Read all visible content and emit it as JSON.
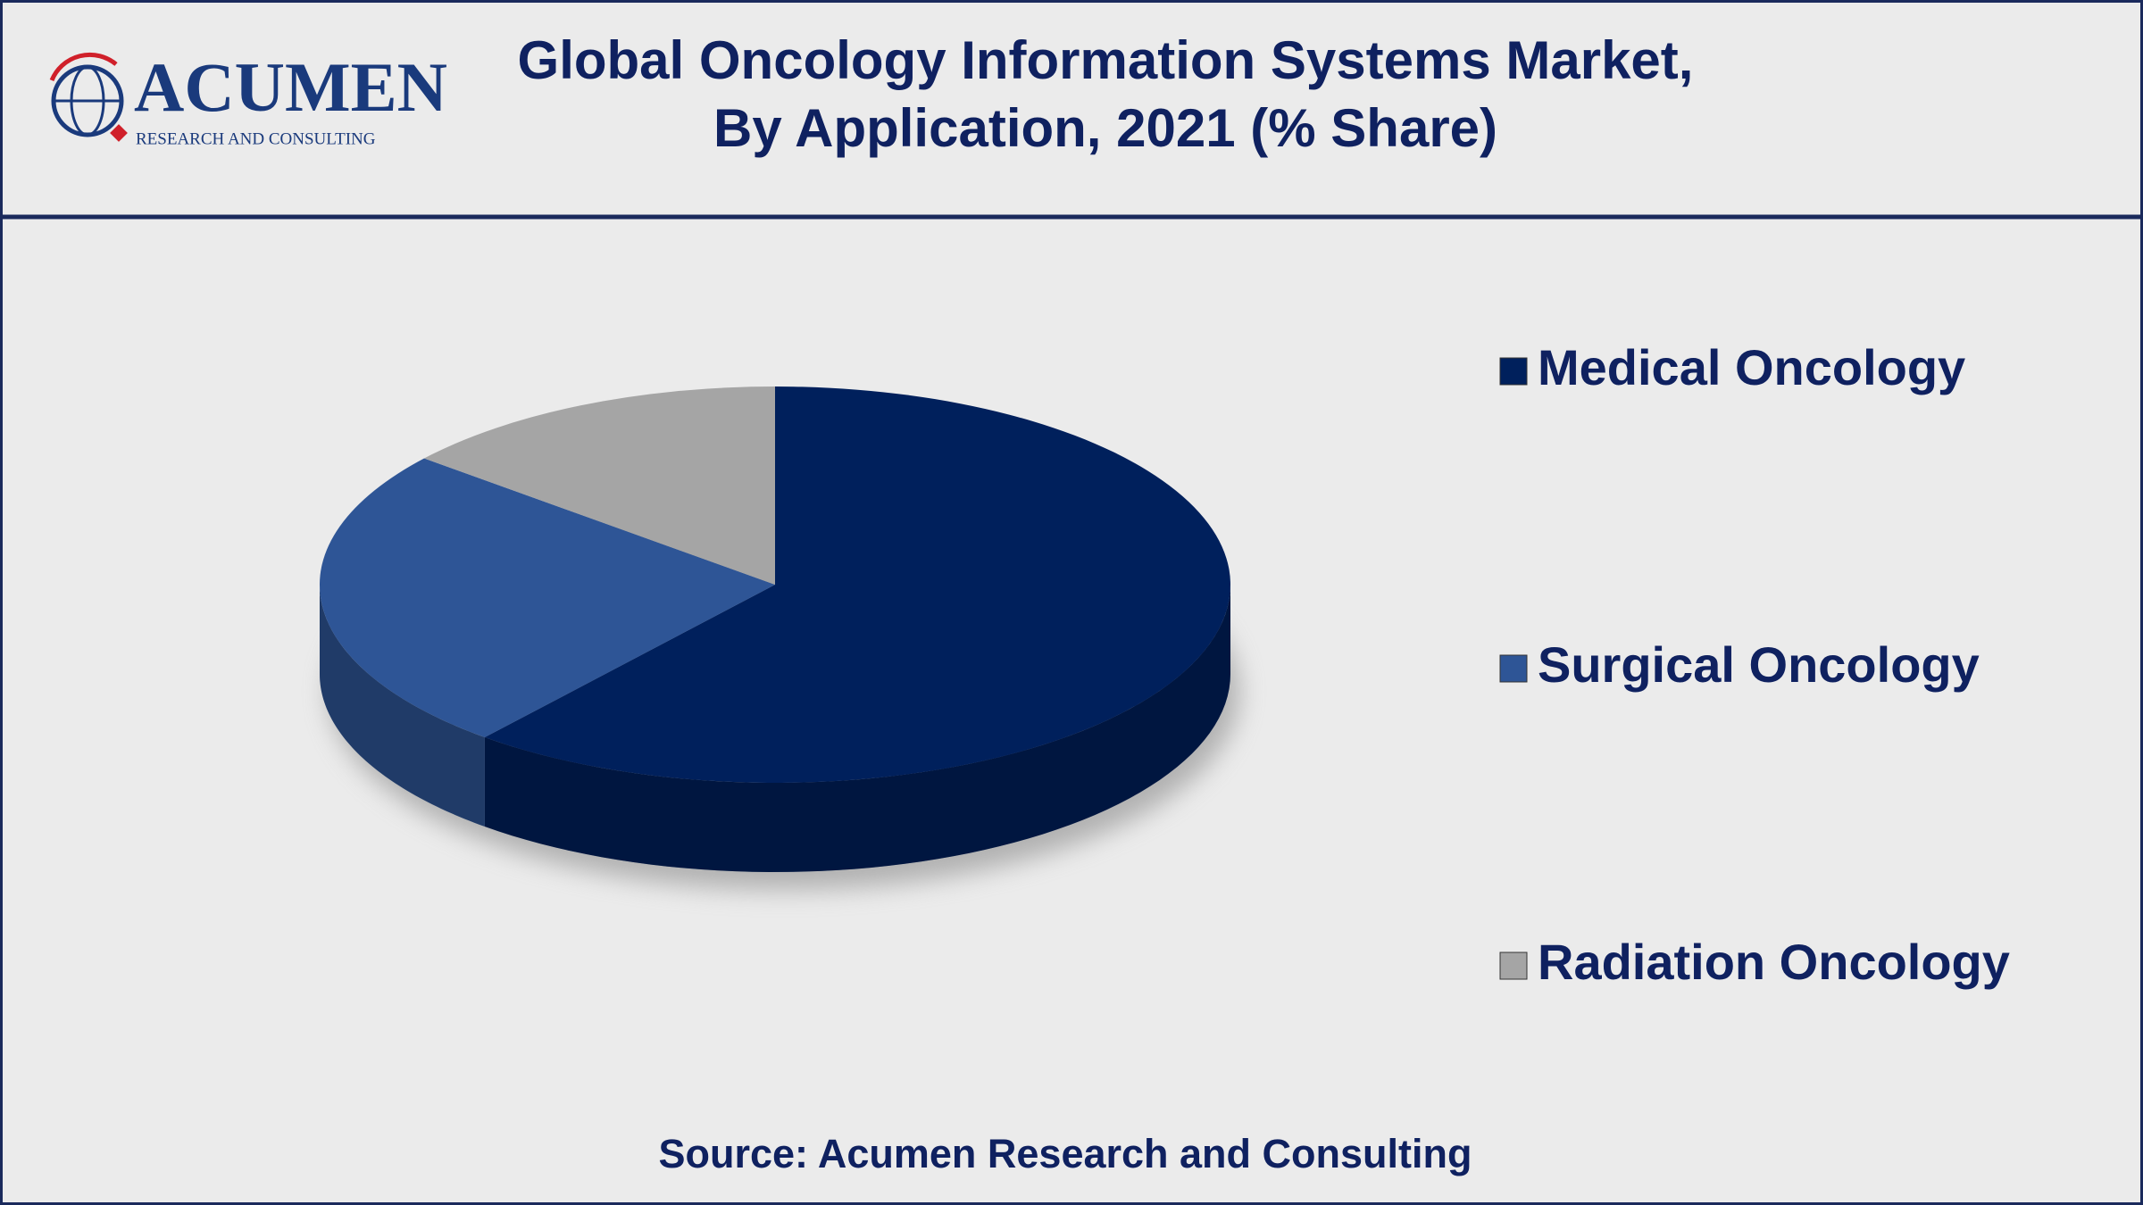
{
  "header": {
    "logo": {
      "name": "ACUMEN",
      "tagline": "RESEARCH AND CONSULTING"
    }
  },
  "chart_data": {
    "type": "pie",
    "title": [
      "Global Oncology Information Systems Market,",
      "By Application, 2021 (% Share)"
    ],
    "categories": [
      "Medical Oncology",
      "Surgical Oncology",
      "Radiation Oncology"
    ],
    "values": [
      61,
      25,
      14
    ],
    "colors": [
      "#00205c",
      "#2e5596",
      "#a5a5a5"
    ],
    "legend": "right"
  },
  "source": "Source: Acumen Research and Consulting"
}
